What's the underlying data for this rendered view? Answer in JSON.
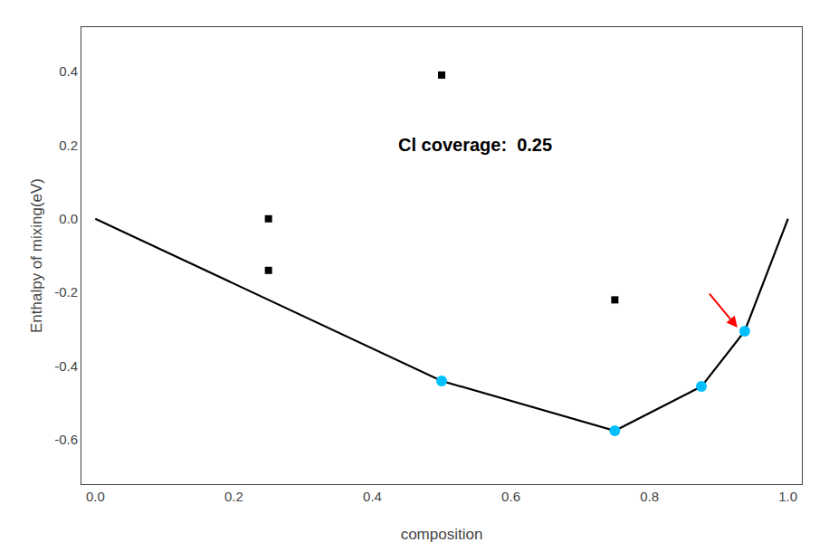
{
  "chart_data": {
    "type": "scatter",
    "xlabel": "composition",
    "ylabel": "Enthalpy of mixing(eV)",
    "xlim": [
      -0.02,
      1.02
    ],
    "ylim": [
      -0.72,
      0.52
    ],
    "xticks": [
      {
        "value": 0.0,
        "label": "0.0"
      },
      0.2,
      0.4,
      0.6,
      0.8,
      {
        "value": 1.0,
        "label": "1.0"
      }
    ],
    "yticks": [
      -0.6,
      -0.4,
      -0.2,
      {
        "value": 0.0,
        "label": "0.0"
      },
      0.2,
      0.4
    ],
    "grid": false,
    "series": [
      {
        "type": "line",
        "color": "black",
        "line_style": "solid",
        "x": [
          0.0,
          0.5,
          0.75,
          0.875,
          0.9375,
          1.0
        ],
        "values": [
          0.0,
          -0.44,
          -0.575,
          -0.455,
          -0.305,
          0.0
        ]
      },
      {
        "type": "scatter",
        "color": "#00BFFF",
        "marker": "circle",
        "x": [
          0.5,
          0.75,
          0.875,
          0.9375
        ],
        "values": [
          -0.44,
          -0.575,
          -0.455,
          -0.305
        ]
      },
      {
        "type": "scatter",
        "color": "black",
        "marker": "square",
        "x": [
          0.25,
          0.25,
          0.5,
          0.75
        ],
        "values": [
          0.0,
          -0.14,
          0.39,
          -0.22
        ]
      }
    ],
    "annotations": [
      {
        "text": "Cl coverage:  0.25",
        "x": 0.435,
        "y": 0.2
      },
      {
        "x": 0.927,
        "y": -0.295,
        "from_x": 0.885,
        "from_y": -0.2,
        "color": "red"
      }
    ]
  }
}
